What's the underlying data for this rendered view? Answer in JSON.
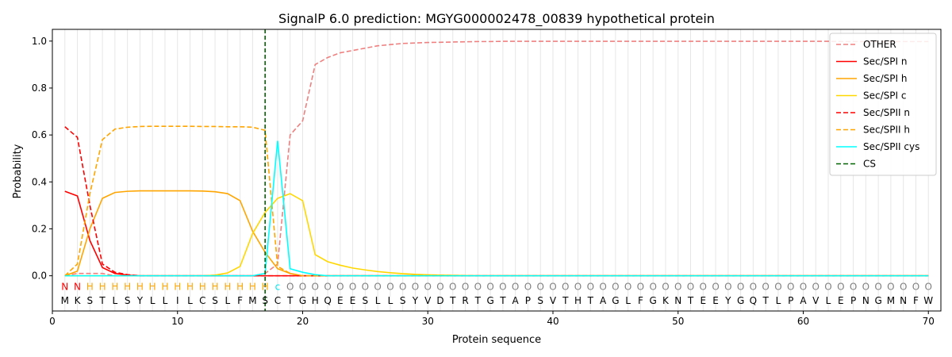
{
  "chart_data": {
    "type": "line",
    "title": "SignalP 6.0 prediction: MGYG000002478_00839 hypothetical protein",
    "xlabel": "Protein sequence",
    "ylabel": "Probability",
    "xlim": [
      0,
      71
    ],
    "ylim": [
      -0.15,
      1.05
    ],
    "xticks": [
      0,
      10,
      20,
      30,
      40,
      50,
      60,
      70
    ],
    "yticks": [
      0.0,
      0.2,
      0.4,
      0.6,
      0.8,
      1.0
    ],
    "xtick_labels": [
      "0",
      "10",
      "20",
      "30",
      "40",
      "50",
      "60",
      "70"
    ],
    "ytick_labels": [
      "0.0",
      "0.2",
      "0.4",
      "0.6",
      "0.8",
      "1.0"
    ],
    "legend_position": "top-right",
    "sequence": "MKSTLSYLLILCSLFMSCTGHQEESLLSYVDTRTGTAPSVTHTAGLFGKNTEEYGQTLPAVLEPNGMNFW",
    "region_labels": "NNHHHHHHHHHHHHHHHcOOOOOOOOOOOOOOOOOOOOOOOOOOOOOOOOOOOOOOOOOOOOOOOOOOOO",
    "region_colors": {
      "N": "#ff0000",
      "H": "#ffa500",
      "c": "#00e5ee",
      "O": "#808080"
    },
    "cleavage_site": 17,
    "series": [
      {
        "name": "OTHER",
        "color": "#f08080",
        "dash": "dashed",
        "values": [
          0.0,
          0.01,
          0.01,
          0.01,
          0.0,
          0.0,
          0.0,
          0.0,
          0.0,
          0.0,
          0.0,
          0.0,
          0.0,
          0.0,
          0.0,
          0.0,
          0.01,
          0.05,
          0.6,
          0.66,
          0.9,
          0.93,
          0.95,
          0.96,
          0.97,
          0.98,
          0.985,
          0.99,
          0.992,
          0.994,
          0.995,
          0.996,
          0.997,
          0.998,
          0.998,
          0.999,
          0.999,
          0.999,
          0.999,
          0.999,
          0.999,
          0.999,
          0.999,
          0.999,
          0.999,
          0.999,
          0.999,
          0.999,
          0.999,
          0.999,
          0.999,
          0.999,
          0.999,
          0.999,
          0.999,
          0.999,
          0.999,
          0.999,
          0.999,
          0.999,
          0.999,
          0.999,
          0.998,
          0.998,
          0.998,
          0.998,
          0.998,
          0.998,
          0.998,
          0.998
        ]
      },
      {
        "name": "Sec/SPI n",
        "color": "#ff0000",
        "dash": "solid",
        "values": [
          0.36,
          0.34,
          0.15,
          0.035,
          0.01,
          0.003,
          0.0,
          0.0,
          0.0,
          0.0,
          0.0,
          0.0,
          0.0,
          0.0,
          0.0,
          0.0,
          0.0,
          0.0,
          0.0,
          0.0,
          0.0,
          0.0,
          0.0,
          0.0,
          0.0,
          0.0,
          0.0,
          0.0,
          0.0,
          0.0,
          0.0,
          0.0,
          0.0,
          0.0,
          0.0,
          0.0,
          0.0,
          0.0,
          0.0,
          0.0,
          0.0,
          0.0,
          0.0,
          0.0,
          0.0,
          0.0,
          0.0,
          0.0,
          0.0,
          0.0,
          0.0,
          0.0,
          0.0,
          0.0,
          0.0,
          0.0,
          0.0,
          0.0,
          0.0,
          0.0,
          0.0,
          0.0,
          0.0,
          0.0,
          0.0,
          0.0,
          0.0,
          0.0,
          0.0,
          0.0
        ]
      },
      {
        "name": "Sec/SPI h",
        "color": "#ffa500",
        "dash": "solid",
        "values": [
          0.0,
          0.02,
          0.2,
          0.33,
          0.355,
          0.36,
          0.362,
          0.362,
          0.362,
          0.362,
          0.362,
          0.361,
          0.358,
          0.35,
          0.32,
          0.19,
          0.1,
          0.03,
          0.01,
          0.0,
          0.0,
          0.0,
          0.0,
          0.0,
          0.0,
          0.0,
          0.0,
          0.0,
          0.0,
          0.0,
          0.0,
          0.0,
          0.0,
          0.0,
          0.0,
          0.0,
          0.0,
          0.0,
          0.0,
          0.0,
          0.0,
          0.0,
          0.0,
          0.0,
          0.0,
          0.0,
          0.0,
          0.0,
          0.0,
          0.0,
          0.0,
          0.0,
          0.0,
          0.0,
          0.0,
          0.0,
          0.0,
          0.0,
          0.0,
          0.0,
          0.0,
          0.0,
          0.0,
          0.0,
          0.0,
          0.0,
          0.0,
          0.0,
          0.0,
          0.0
        ]
      },
      {
        "name": "Sec/SPI c",
        "color": "#ffd700",
        "dash": "solid",
        "values": [
          0.0,
          0.0,
          0.0,
          0.0,
          0.0,
          0.0,
          0.0,
          0.0,
          0.0,
          0.0,
          0.0,
          0.0,
          0.003,
          0.012,
          0.04,
          0.18,
          0.27,
          0.33,
          0.35,
          0.32,
          0.09,
          0.06,
          0.045,
          0.033,
          0.025,
          0.018,
          0.013,
          0.009,
          0.006,
          0.004,
          0.003,
          0.002,
          0.001,
          0.0,
          0.0,
          0.0,
          0.0,
          0.0,
          0.0,
          0.0,
          0.0,
          0.0,
          0.0,
          0.0,
          0.0,
          0.0,
          0.0,
          0.0,
          0.0,
          0.0,
          0.0,
          0.0,
          0.0,
          0.0,
          0.0,
          0.0,
          0.0,
          0.0,
          0.0,
          0.0,
          0.0,
          0.0,
          0.0,
          0.0,
          0.0,
          0.0,
          0.0,
          0.0,
          0.0,
          0.0
        ]
      },
      {
        "name": "Sec/SPII n",
        "color": "#ff0000",
        "dash": "dashed",
        "values": [
          0.635,
          0.59,
          0.3,
          0.05,
          0.015,
          0.005,
          0.0,
          0.0,
          0.0,
          0.0,
          0.0,
          0.0,
          0.0,
          0.0,
          0.0,
          0.0,
          0.0,
          0.0,
          0.0,
          0.0,
          0.0,
          0.0,
          0.0,
          0.0,
          0.0,
          0.0,
          0.0,
          0.0,
          0.0,
          0.0,
          0.0,
          0.0,
          0.0,
          0.0,
          0.0,
          0.0,
          0.0,
          0.0,
          0.0,
          0.0,
          0.0,
          0.0,
          0.0,
          0.0,
          0.0,
          0.0,
          0.0,
          0.0,
          0.0,
          0.0,
          0.0,
          0.0,
          0.0,
          0.0,
          0.0,
          0.0,
          0.0,
          0.0,
          0.0,
          0.0,
          0.0,
          0.0,
          0.0,
          0.0,
          0.0,
          0.0,
          0.0,
          0.0,
          0.0,
          0.0
        ]
      },
      {
        "name": "Sec/SPII h",
        "color": "#ffa500",
        "dash": "dashed",
        "values": [
          0.0,
          0.05,
          0.35,
          0.58,
          0.625,
          0.633,
          0.636,
          0.637,
          0.637,
          0.637,
          0.637,
          0.636,
          0.636,
          0.635,
          0.635,
          0.633,
          0.62,
          0.04,
          0.01,
          0.0,
          0.0,
          0.0,
          0.0,
          0.0,
          0.0,
          0.0,
          0.0,
          0.0,
          0.0,
          0.0,
          0.0,
          0.0,
          0.0,
          0.0,
          0.0,
          0.0,
          0.0,
          0.0,
          0.0,
          0.0,
          0.0,
          0.0,
          0.0,
          0.0,
          0.0,
          0.0,
          0.0,
          0.0,
          0.0,
          0.0,
          0.0,
          0.0,
          0.0,
          0.0,
          0.0,
          0.0,
          0.0,
          0.0,
          0.0,
          0.0,
          0.0,
          0.0,
          0.0,
          0.0,
          0.0,
          0.0,
          0.0,
          0.0,
          0.0,
          0.0
        ]
      },
      {
        "name": "Sec/SPII cys",
        "color": "#00ffff",
        "dash": "solid",
        "values": [
          0.0,
          0.0,
          0.0,
          0.0,
          0.0,
          0.0,
          0.0,
          0.0,
          0.0,
          0.0,
          0.0,
          0.0,
          0.0,
          0.0,
          0.0,
          0.0,
          0.01,
          0.575,
          0.03,
          0.015,
          0.005,
          0.0,
          0.0,
          0.0,
          0.0,
          0.0,
          0.0,
          0.0,
          0.0,
          0.0,
          0.0,
          0.0,
          0.0,
          0.0,
          0.0,
          0.0,
          0.0,
          0.0,
          0.0,
          0.0,
          0.0,
          0.0,
          0.0,
          0.0,
          0.0,
          0.0,
          0.0,
          0.0,
          0.0,
          0.0,
          0.0,
          0.0,
          0.0,
          0.0,
          0.0,
          0.0,
          0.0,
          0.0,
          0.0,
          0.0,
          0.0,
          0.0,
          0.0,
          0.0,
          0.0,
          0.0,
          0.0,
          0.0,
          0.0,
          0.0
        ]
      }
    ],
    "legend": [
      {
        "label": "OTHER",
        "color": "#f08080",
        "dash": "dashed"
      },
      {
        "label": "Sec/SPI n",
        "color": "#ff0000",
        "dash": "solid"
      },
      {
        "label": "Sec/SPI h",
        "color": "#ffa500",
        "dash": "solid"
      },
      {
        "label": "Sec/SPI c",
        "color": "#ffd700",
        "dash": "solid"
      },
      {
        "label": "Sec/SPII n",
        "color": "#ff0000",
        "dash": "dashed"
      },
      {
        "label": "Sec/SPII h",
        "color": "#ffa500",
        "dash": "dashed"
      },
      {
        "label": "Sec/SPII cys",
        "color": "#00ffff",
        "dash": "solid"
      },
      {
        "label": "CS",
        "color": "#006400",
        "dash": "dashed"
      }
    ]
  }
}
